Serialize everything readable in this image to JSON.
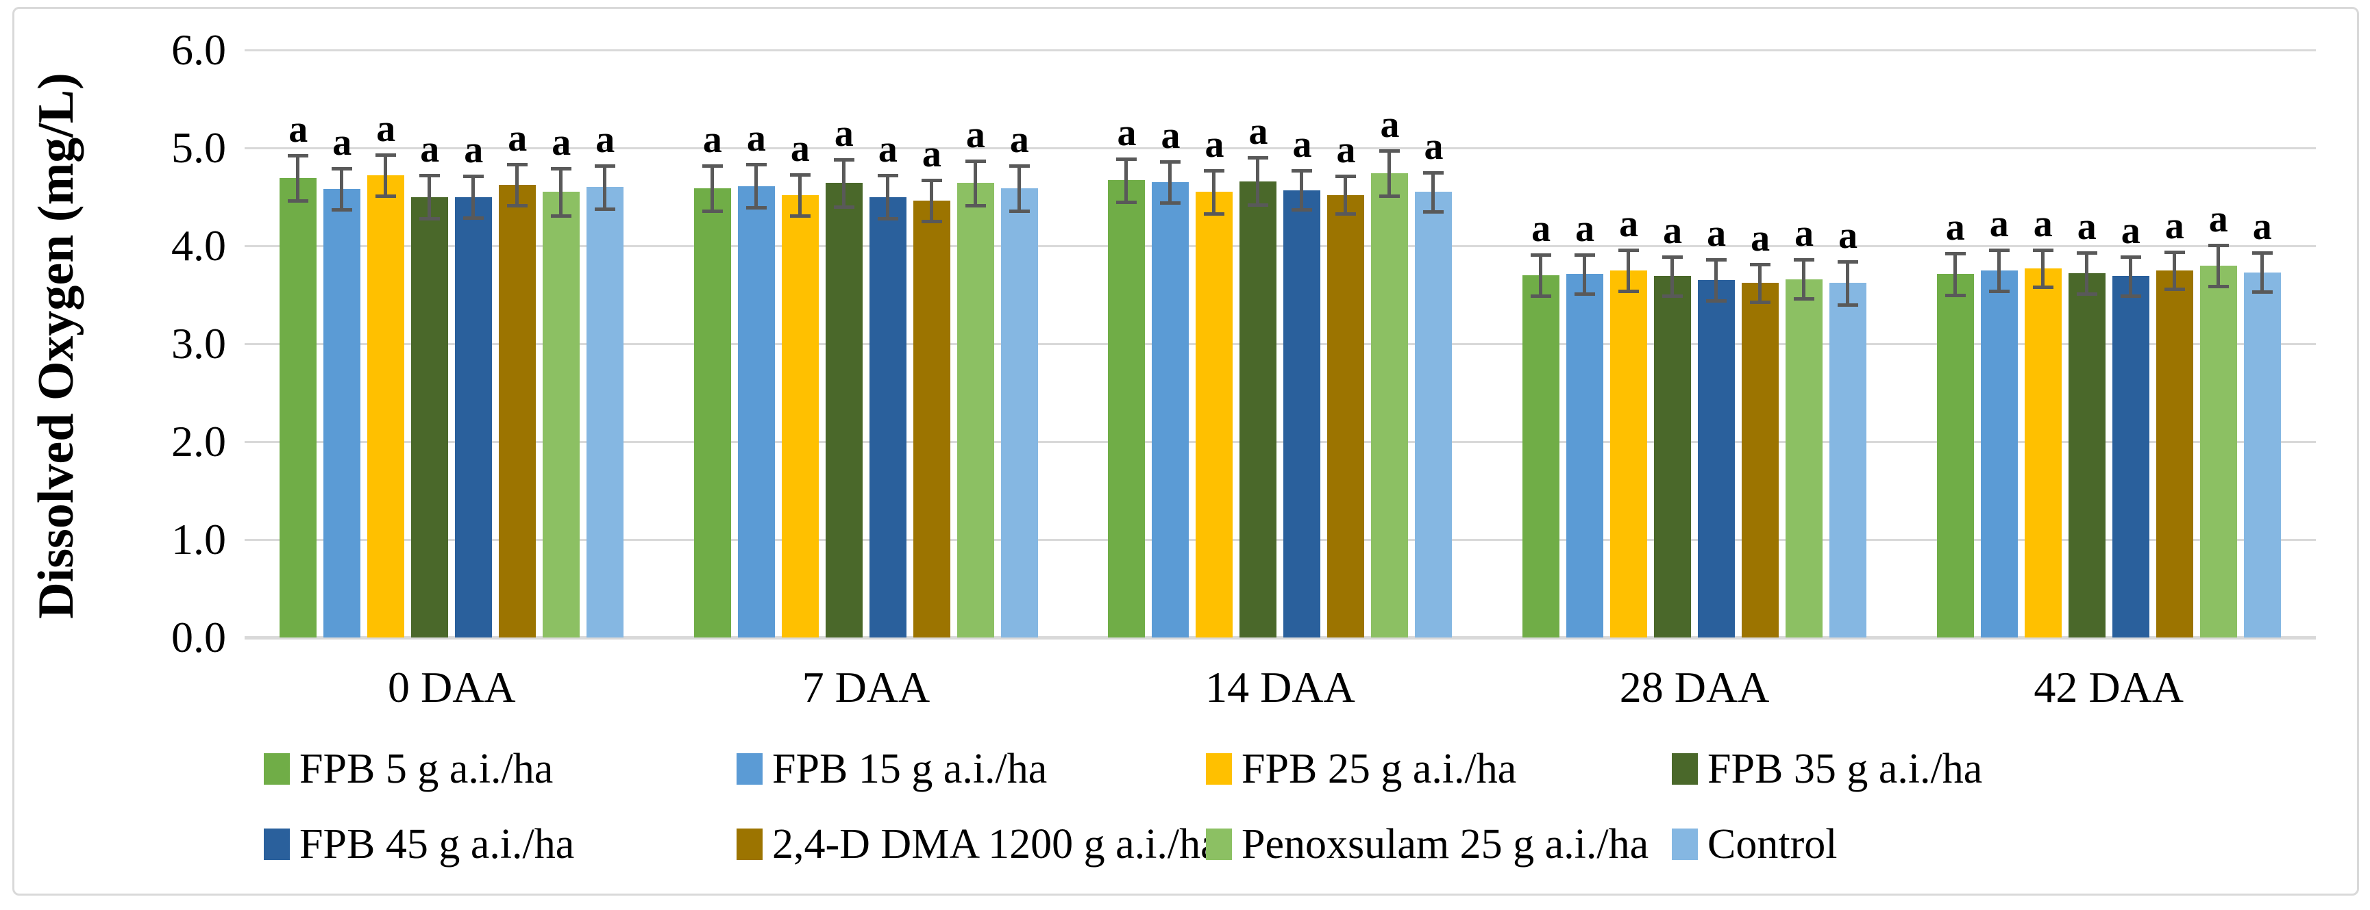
{
  "figure": {
    "background": "#FFFFFF",
    "border_color": "#D9D9D9"
  },
  "chart_data": {
    "type": "bar",
    "title": "",
    "xlabel": "",
    "ylabel": "Dissolved Oxygen (mg/L)",
    "ylim": [
      0,
      6
    ],
    "ytick_labels": [
      "6.0",
      "5.0",
      "4.0",
      "3.0",
      "2.0",
      "1.0",
      "0.0"
    ],
    "grid": "horizontal",
    "gridline_color": "#D9D9D9",
    "error_bar_color": "#595959",
    "significance_letter": "a",
    "legend_position": "bottom-two-rows",
    "categories": [
      "0 DAA",
      "7 DAA",
      "14 DAA",
      "28 DAA",
      "42 DAA"
    ],
    "series": [
      {
        "name": "FPB 5 g a.i./ha",
        "color": "#70AD47",
        "values": [
          4.69,
          4.59,
          4.67,
          3.7,
          3.71
        ],
        "errors": [
          0.23,
          0.23,
          0.22,
          0.21,
          0.21
        ]
      },
      {
        "name": "FPB 15 g a.i./ha",
        "color": "#5B9BD5",
        "values": [
          4.58,
          4.61,
          4.65,
          3.71,
          3.75
        ],
        "errors": [
          0.21,
          0.22,
          0.21,
          0.2,
          0.21
        ]
      },
      {
        "name": "FPB 25 g a.i./ha",
        "color": "#FFC000",
        "values": [
          4.72,
          4.52,
          4.55,
          3.75,
          3.77
        ],
        "errors": [
          0.21,
          0.21,
          0.22,
          0.21,
          0.19
        ]
      },
      {
        "name": "FPB 35 g a.i./ha",
        "color": "#4A682A",
        "values": [
          4.5,
          4.64,
          4.66,
          3.69,
          3.72
        ],
        "errors": [
          0.22,
          0.24,
          0.24,
          0.2,
          0.21
        ]
      },
      {
        "name": "FPB 45 g a.i./ha",
        "color": "#2A609C",
        "values": [
          4.5,
          4.5,
          4.57,
          3.65,
          3.69
        ],
        "errors": [
          0.21,
          0.22,
          0.2,
          0.21,
          0.2
        ]
      },
      {
        "name": "2,4-D DMA 1200 g a.i./ha",
        "color": "#9C7400",
        "values": [
          4.62,
          4.46,
          4.52,
          3.62,
          3.75
        ],
        "errors": [
          0.21,
          0.21,
          0.19,
          0.19,
          0.19
        ]
      },
      {
        "name": "Penoxsulam 25 g a.i./ha",
        "color": "#8CC063",
        "values": [
          4.55,
          4.64,
          4.74,
          3.66,
          3.8
        ],
        "errors": [
          0.24,
          0.23,
          0.23,
          0.2,
          0.21
        ]
      },
      {
        "name": "Control",
        "color": "#85B7E2",
        "values": [
          4.6,
          4.59,
          4.55,
          3.62,
          3.73
        ],
        "errors": [
          0.22,
          0.23,
          0.2,
          0.22,
          0.2
        ]
      }
    ],
    "legend_rows": [
      [
        0,
        1,
        2,
        3
      ],
      [
        4,
        5,
        6,
        7
      ]
    ]
  }
}
